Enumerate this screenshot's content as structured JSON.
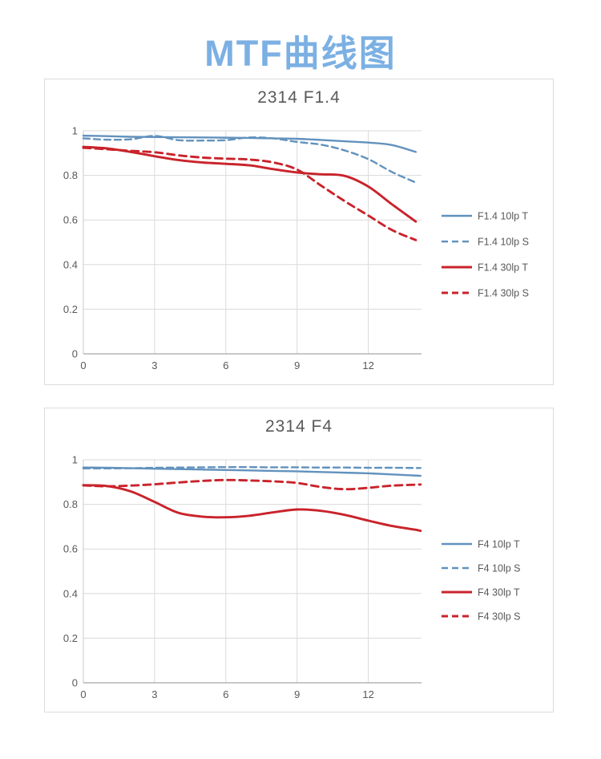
{
  "page": {
    "title": "MTF曲线图"
  },
  "colors": {
    "title": "#7cb0e3",
    "text": "#595959",
    "blue": "#6292bd",
    "red": "#c9232b",
    "grid": "#dadada",
    "axis_x": "#a6a6a6",
    "axis_y": "#c9c9c9",
    "panel_border": "#dcdcdc"
  },
  "chart_data": [
    {
      "type": "line",
      "title": "2314 F1.4",
      "xlabel": "",
      "ylabel": "",
      "xticks": [
        0,
        3,
        6,
        9,
        12
      ],
      "yticks": [
        0,
        0.2,
        0.4,
        0.6,
        0.8,
        1
      ],
      "xlim": [
        0,
        14.24
      ],
      "ylim": [
        0,
        1
      ],
      "grid": true,
      "legend_position": "right",
      "x": [
        0,
        1,
        2,
        3,
        4,
        5,
        6,
        7,
        8,
        9,
        10,
        11,
        12,
        13,
        14
      ],
      "series": [
        {
          "name": "F1.4 10lp T",
          "color": "blue",
          "style": "solid",
          "values": [
            0.978,
            0.976,
            0.973,
            0.972,
            0.971,
            0.97,
            0.969,
            0.968,
            0.966,
            0.964,
            0.959,
            0.953,
            0.947,
            0.936,
            0.905
          ]
        },
        {
          "name": "F1.4 10lp S",
          "color": "blue",
          "style": "dashed",
          "values": [
            0.966,
            0.96,
            0.962,
            0.977,
            0.958,
            0.956,
            0.958,
            0.97,
            0.966,
            0.95,
            0.938,
            0.912,
            0.873,
            0.815,
            0.768
          ]
        },
        {
          "name": "F1.4 30lp T",
          "color": "red",
          "style": "solid",
          "values": [
            0.928,
            0.921,
            0.905,
            0.886,
            0.869,
            0.858,
            0.852,
            0.845,
            0.828,
            0.813,
            0.805,
            0.798,
            0.75,
            0.67,
            0.593
          ]
        },
        {
          "name": "F1.4 30lp S",
          "color": "red",
          "style": "dashed",
          "values": [
            0.924,
            0.917,
            0.91,
            0.904,
            0.89,
            0.88,
            0.875,
            0.871,
            0.858,
            0.826,
            0.755,
            0.685,
            0.62,
            0.555,
            0.51
          ]
        }
      ]
    },
    {
      "type": "line",
      "title": "2314 F4",
      "xlabel": "",
      "ylabel": "",
      "xticks": [
        0,
        3,
        6,
        9,
        12
      ],
      "yticks": [
        0,
        0.2,
        0.4,
        0.6,
        0.8,
        1
      ],
      "xlim": [
        0,
        14.24
      ],
      "ylim": [
        0,
        1
      ],
      "grid": true,
      "legend_position": "right",
      "x": [
        0,
        1,
        2,
        3,
        4,
        5,
        6,
        7,
        8,
        9,
        10,
        11,
        12,
        13,
        14,
        14.2
      ],
      "series": [
        {
          "name": "F4 10lp T",
          "color": "blue",
          "style": "solid",
          "values": [
            0.965,
            0.964,
            0.962,
            0.96,
            0.958,
            0.956,
            0.954,
            0.952,
            0.95,
            0.948,
            0.945,
            0.942,
            0.939,
            0.934,
            0.929,
            0.928
          ]
        },
        {
          "name": "F4 10lp S",
          "color": "blue",
          "style": "dashed",
          "values": [
            0.961,
            0.961,
            0.962,
            0.964,
            0.965,
            0.966,
            0.967,
            0.967,
            0.966,
            0.966,
            0.965,
            0.965,
            0.964,
            0.964,
            0.963,
            0.963
          ]
        },
        {
          "name": "F4 30lp T",
          "color": "red",
          "style": "solid",
          "values": [
            0.886,
            0.882,
            0.858,
            0.811,
            0.762,
            0.745,
            0.742,
            0.749,
            0.764,
            0.777,
            0.771,
            0.753,
            0.727,
            0.703,
            0.686,
            0.681
          ]
        },
        {
          "name": "F4 30lp S",
          "color": "red",
          "style": "dashed",
          "values": [
            0.885,
            0.881,
            0.884,
            0.89,
            0.898,
            0.905,
            0.909,
            0.907,
            0.903,
            0.896,
            0.878,
            0.868,
            0.874,
            0.884,
            0.888,
            0.889
          ]
        }
      ]
    }
  ]
}
